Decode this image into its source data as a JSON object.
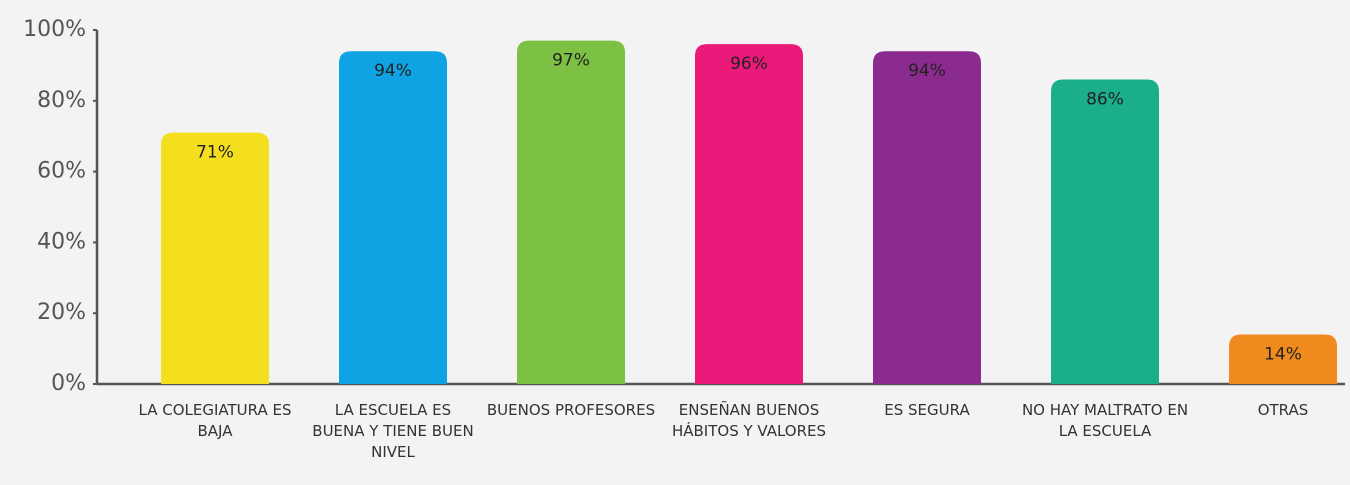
{
  "chart_data": {
    "type": "bar",
    "categories": [
      "LA COLEGIATURA ES BAJA",
      "LA ESCUELA ES BUENA Y TIENE BUEN NIVEL",
      "BUENOS PROFESORES",
      "ENSEÑAN BUENOS HÁBITOS Y VALORES",
      "ES SEGURA",
      "NO HAY MALTRATO EN LA ESCUELA",
      "OTRAS"
    ],
    "values": [
      71,
      94,
      97,
      96,
      94,
      86,
      14
    ],
    "value_labels": [
      "71%",
      "94%",
      "97%",
      "96%",
      "94%",
      "86%",
      "14%"
    ],
    "colors": [
      "#f4df1e",
      "#0fa3e3",
      "#7cc143",
      "#e91a7a",
      "#8b2b8f",
      "#1bae8b",
      "#ef8a1f"
    ],
    "ylim": [
      0,
      100
    ],
    "yticks": [
      {
        "value": 0,
        "label": "0%"
      },
      {
        "value": 20,
        "label": "20%"
      },
      {
        "value": 40,
        "label": "40%"
      },
      {
        "value": 60,
        "label": "60%"
      },
      {
        "value": 80,
        "label": "80%"
      },
      {
        "value": 100,
        "label": "100%"
      }
    ]
  }
}
